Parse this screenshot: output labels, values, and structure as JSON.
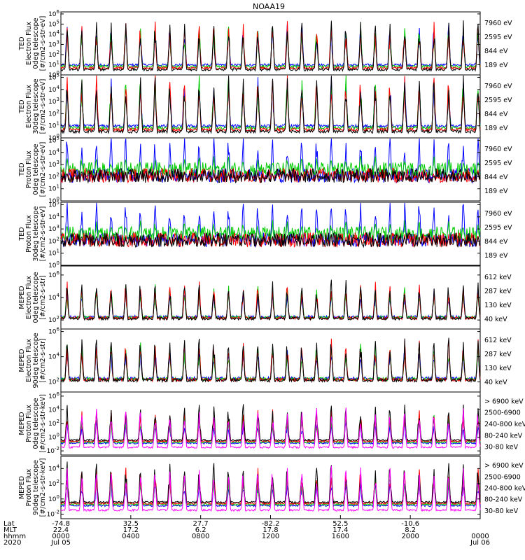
{
  "chart_data": {
    "type": "line",
    "title": "NOAA19",
    "time_range": [
      "2020-07-05 00:00",
      "2020-07-06 00:00"
    ],
    "x_hours": [
      0,
      24
    ],
    "panels": [
      {
        "ylabel": [
          "TED",
          "Electron Flux",
          "0deg telescope",
          "[#/cm2-s-str-eV]"
        ],
        "y_tick_exponents": [
          0,
          1,
          2,
          3,
          4,
          5,
          6
        ],
        "y_exp_range": [
          0,
          6.2
        ],
        "series": [
          {
            "name": "7960 eV",
            "color": "#000000"
          },
          {
            "name": "2595 eV",
            "color": "#ff0000"
          },
          {
            "name": "844 eV",
            "color": "#00cc00"
          },
          {
            "name": "189 eV",
            "color": "#0000ff"
          }
        ]
      },
      {
        "ylabel": [
          "TED",
          "Electron Flux",
          "30deg telescope",
          "[#/cm2-s-str-eV]"
        ],
        "y_tick_exponents": [
          0,
          1,
          2,
          3,
          4,
          5
        ],
        "y_exp_range": [
          0,
          5.2
        ],
        "series": [
          {
            "name": "7960 eV",
            "color": "#000000"
          },
          {
            "name": "2595 eV",
            "color": "#ff0000"
          },
          {
            "name": "844 eV",
            "color": "#00cc00"
          },
          {
            "name": "189 eV",
            "color": "#0000ff"
          }
        ]
      },
      {
        "ylabel": [
          "TED",
          "Proton Flux",
          "0deg telescope",
          "[#/cm2-s-str-eV]"
        ],
        "y_tick_exponents": [
          0,
          1,
          2,
          3,
          4,
          5
        ],
        "y_exp_range": [
          0,
          5.2
        ],
        "series": [
          {
            "name": "7960 eV",
            "color": "#000000"
          },
          {
            "name": "2595 eV",
            "color": "#ff0000"
          },
          {
            "name": "844 eV",
            "color": "#00cc00"
          },
          {
            "name": "189 eV",
            "color": "#0000ff"
          }
        ]
      },
      {
        "ylabel": [
          "TED",
          "Proton Flux",
          "30deg telescope",
          "[#/cm2-s-str-eV]"
        ],
        "y_tick_exponents": [
          0,
          1,
          2,
          3,
          4,
          5
        ],
        "y_exp_range": [
          0,
          5.2
        ],
        "series": [
          {
            "name": "7960 eV",
            "color": "#000000"
          },
          {
            "name": "2595 eV",
            "color": "#ff0000"
          },
          {
            "name": "844 eV",
            "color": "#00cc00"
          },
          {
            "name": "189 eV",
            "color": "#0000ff"
          }
        ]
      },
      {
        "ylabel": [
          "MEPED",
          "Electron Flux",
          "0deg telescope",
          "[#/cm2-s-str]"
        ],
        "y_tick_exponents": [
          2,
          4,
          6
        ],
        "y_exp_range": [
          1.2,
          6.8
        ],
        "series": [
          {
            "name": "612 keV",
            "color": "#000000"
          },
          {
            "name": "287 keV",
            "color": "#ff0000"
          },
          {
            "name": "130 keV",
            "color": "#00cc00"
          },
          {
            "name": "40 keV",
            "color": "#0000ff"
          }
        ]
      },
      {
        "ylabel": [
          "MEPED",
          "Electron Flux",
          "90deg telescope",
          "[#/cm2-s-str]"
        ],
        "y_tick_exponents": [
          2,
          4,
          6
        ],
        "y_exp_range": [
          1.2,
          6.2
        ],
        "series": [
          {
            "name": "612 keV",
            "color": "#000000"
          },
          {
            "name": "287 keV",
            "color": "#ff0000"
          },
          {
            "name": "130 keV",
            "color": "#00cc00"
          },
          {
            "name": "40 keV",
            "color": "#0000ff"
          }
        ]
      },
      {
        "ylabel": [
          "MEPED",
          "Proton Flux",
          "0deg telescope",
          "[#/cm2-s-str-keV]"
        ],
        "y_tick_exponents": [
          -2,
          0,
          2,
          4,
          6
        ],
        "y_exp_range": [
          -2.6,
          6.6
        ],
        "series": [
          {
            "name": "> 6900 keV",
            "color": "#ff00ff"
          },
          {
            "name": "2500-6900",
            "color": "#000000"
          },
          {
            "name": "240-800 keV",
            "color": "#ff0000"
          },
          {
            "name": "80-240 keV",
            "color": "#00cc00"
          },
          {
            "name": "30-80 keV",
            "color": "#0000ff"
          }
        ]
      },
      {
        "ylabel": [
          "MEPED",
          "Proton Flux",
          "90deg telescope",
          "[#/cm2-s-str-keV]"
        ],
        "y_tick_exponents": [
          -2,
          0,
          2,
          4
        ],
        "y_exp_range": [
          -2.6,
          5.6
        ],
        "series": [
          {
            "name": "> 6900 keV",
            "color": "#ff00ff"
          },
          {
            "name": "2500-6900",
            "color": "#000000"
          },
          {
            "name": "240-800 keV",
            "color": "#ff0000"
          },
          {
            "name": "80-240 keV",
            "color": "#00cc00"
          },
          {
            "name": "30-80 keV",
            "color": "#0000ff"
          }
        ]
      }
    ],
    "x_axis": {
      "row_labels": [
        "Lat",
        "MLT",
        "hhmm",
        "2020"
      ],
      "ticks": [
        {
          "hour": 0,
          "lat": "-74.8",
          "mlt": "22.4",
          "hhmm": "0000",
          "date": "Jul 05"
        },
        {
          "hour": 4,
          "lat": "32.5",
          "mlt": "17.2",
          "hhmm": "0400",
          "date": ""
        },
        {
          "hour": 8,
          "lat": "27.7",
          "mlt": "6.2",
          "hhmm": "0800",
          "date": ""
        },
        {
          "hour": 12,
          "lat": "-82.2",
          "mlt": "17.8",
          "hhmm": "1200",
          "date": ""
        },
        {
          "hour": 16,
          "lat": "52.5",
          "mlt": "17.4",
          "hhmm": "1600",
          "date": ""
        },
        {
          "hour": 20,
          "lat": "-10.6",
          "mlt": "8.2",
          "hhmm": "2000",
          "date": ""
        },
        {
          "hour": 24,
          "lat": "",
          "mlt": "",
          "hhmm": "0000",
          "date": "Jul 06"
        }
      ]
    }
  }
}
